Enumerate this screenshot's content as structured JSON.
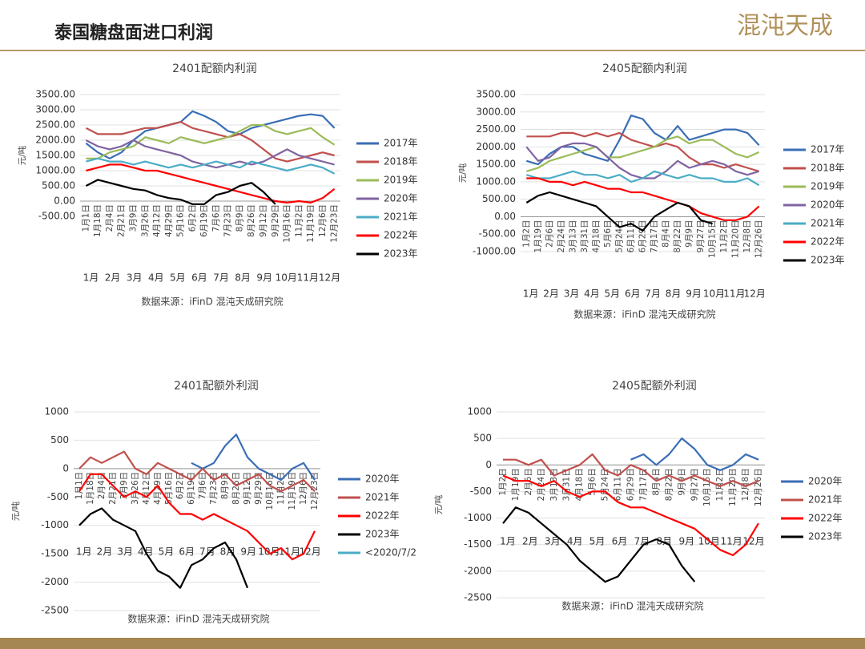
{
  "header": {
    "title": "泰国糖盘面进口利润",
    "logo": "混沌天成"
  },
  "chart_data": [
    {
      "type": "line",
      "title": "2401配额内利润",
      "axis_label": "元/吨",
      "source": "数据来源：iFinD 混沌天成研究院",
      "categories": [
        "1月1日",
        "1月18日",
        "2月4日",
        "2月21日",
        "3月9日",
        "3月26日",
        "4月12日",
        "4月29日",
        "5月16日",
        "6月2日",
        "6月19日",
        "7月6日",
        "7月23日",
        "8月9日",
        "8月26日",
        "9月12日",
        "9月29日",
        "10月16日",
        "11月2日",
        "11月19日",
        "12月6日",
        "12月23日"
      ],
      "month_labels": [
        "1月",
        "2月",
        "3月",
        "4月",
        "5月",
        "6月",
        "7月",
        "8月",
        "9月",
        "10月",
        "11月",
        "12月"
      ],
      "ylim": [
        -500,
        3500
      ],
      "yticks": [
        {
          "value": -500,
          "label": "-500.00"
        },
        {
          "value": 0,
          "label": "0.00"
        },
        {
          "value": 500,
          "label": "500.00"
        },
        {
          "value": 1000,
          "label": "1000.00"
        },
        {
          "value": 1500,
          "label": "1500.00"
        },
        {
          "value": 2000,
          "label": "2000.00"
        },
        {
          "value": 2500,
          "label": "2500.00"
        },
        {
          "value": 3000,
          "label": "3000.00"
        },
        {
          "value": 3500,
          "label": "3500.00"
        }
      ],
      "series": [
        {
          "name": "2017年",
          "color": "#3a6eb5",
          "values": [
            1900,
            1600,
            1400,
            1600,
            2000,
            2300,
            2400,
            2500,
            2600,
            2950,
            2800,
            2600,
            2300,
            2200,
            2400,
            2500,
            2600,
            2700,
            2800,
            2850,
            2800,
            2400
          ]
        },
        {
          "name": "2018年",
          "color": "#c0504d",
          "values": [
            2400,
            2200,
            2200,
            2200,
            2300,
            2400,
            2400,
            2500,
            2600,
            2400,
            2300,
            2200,
            2100,
            2200,
            2000,
            1700,
            1400,
            1300,
            1400,
            1500,
            1600,
            1500
          ]
        },
        {
          "name": "2019年",
          "color": "#9bbb59",
          "values": [
            1400,
            1400,
            1600,
            1700,
            1800,
            2100,
            2000,
            1900,
            2100,
            2000,
            1900,
            2000,
            2100,
            2300,
            2500,
            2500,
            2300,
            2200,
            2300,
            2400,
            2100,
            1850
          ]
        },
        {
          "name": "2020年",
          "color": "#8064a2",
          "values": [
            2000,
            1800,
            1700,
            1800,
            2000,
            1800,
            1700,
            1600,
            1500,
            1300,
            1200,
            1100,
            1200,
            1300,
            1200,
            1300,
            1500,
            1700,
            1500,
            1400,
            1300,
            1200
          ]
        },
        {
          "name": "2021年",
          "color": "#4bacc6",
          "values": [
            1300,
            1400,
            1300,
            1300,
            1200,
            1300,
            1200,
            1100,
            1200,
            1100,
            1200,
            1300,
            1200,
            1100,
            1300,
            1200,
            1100,
            1000,
            1100,
            1200,
            1100,
            900
          ]
        },
        {
          "name": "2022年",
          "color": "#ff0000",
          "values": [
            1000,
            1100,
            1200,
            1200,
            1100,
            1000,
            1000,
            900,
            800,
            700,
            600,
            500,
            400,
            300,
            200,
            100,
            0,
            -50,
            0,
            -50,
            100,
            400
          ]
        },
        {
          "name": "2023年",
          "color": "#000000",
          "values": [
            500,
            700,
            600,
            500,
            400,
            350,
            200,
            100,
            50,
            -100,
            -100,
            200,
            300,
            500,
            600,
            300,
            -100,
            null,
            null,
            null,
            null,
            null
          ]
        }
      ]
    },
    {
      "type": "line",
      "title": "2405配额内利润",
      "axis_label": "元/吨",
      "source": "数据来源：iFinD 混沌天成研究院",
      "categories": [
        "1月2日",
        "1月19日",
        "2月6日",
        "2月24日",
        "3月13日",
        "3月31日",
        "4月18日",
        "5月6日",
        "5月24日",
        "6月11日",
        "6月29日",
        "7月17日",
        "8月4日",
        "8月22日",
        "9月9日",
        "9月27日",
        "10月15日",
        "11月2日",
        "11月20日",
        "12月8日",
        "12月26日"
      ],
      "month_labels": [
        "1月",
        "2月",
        "3月",
        "4月",
        "5月",
        "6月",
        "7月",
        "8月",
        "9月",
        "10月",
        "11月",
        "12月"
      ],
      "ylim": [
        -1000,
        3500
      ],
      "yticks": [
        {
          "value": -1000,
          "label": "-1000.00"
        },
        {
          "value": -500,
          "label": "-500.00"
        },
        {
          "value": 0,
          "label": "0.00"
        },
        {
          "value": 500,
          "label": "500.00"
        },
        {
          "value": 1000,
          "label": "1000.00"
        },
        {
          "value": 1500,
          "label": "1500.00"
        },
        {
          "value": 2000,
          "label": "2000.00"
        },
        {
          "value": 2500,
          "label": "2500.00"
        },
        {
          "value": 3000,
          "label": "3000.00"
        },
        {
          "value": 3500,
          "label": "3500.00"
        }
      ],
      "series": [
        {
          "name": "2017年",
          "color": "#3a6eb5",
          "values": [
            1600,
            1500,
            1800,
            2000,
            2000,
            1800,
            1700,
            1600,
            2200,
            2900,
            2800,
            2400,
            2200,
            2600,
            2200,
            2300,
            2400,
            2500,
            2500,
            2400,
            2050
          ]
        },
        {
          "name": "2018年",
          "color": "#c0504d",
          "values": [
            2300,
            2300,
            2300,
            2400,
            2400,
            2300,
            2400,
            2300,
            2400,
            2200,
            2100,
            2000,
            2100,
            2000,
            1700,
            1500,
            1500,
            1400,
            1500,
            1400,
            1300
          ]
        },
        {
          "name": "2019年",
          "color": "#9bbb59",
          "values": [
            1300,
            1400,
            1600,
            1700,
            1800,
            1900,
            2000,
            1700,
            1700,
            1800,
            1900,
            2000,
            2200,
            2300,
            2100,
            2200,
            2200,
            2000,
            1800,
            1700,
            1850
          ]
        },
        {
          "name": "2020年",
          "color": "#8064a2",
          "values": [
            2000,
            1600,
            1700,
            2000,
            2100,
            2100,
            2000,
            1700,
            1400,
            1200,
            1100,
            1100,
            1300,
            1600,
            1400,
            1500,
            1600,
            1500,
            1300,
            1200,
            1300
          ]
        },
        {
          "name": "2021年",
          "color": "#4bacc6",
          "values": [
            1200,
            1100,
            1100,
            1200,
            1300,
            1200,
            1200,
            1100,
            1200,
            1000,
            1100,
            1300,
            1200,
            1100,
            1200,
            1100,
            1100,
            1000,
            1000,
            1100,
            900
          ]
        },
        {
          "name": "2022年",
          "color": "#ff0000",
          "values": [
            1100,
            1100,
            1000,
            1000,
            900,
            1000,
            900,
            800,
            800,
            700,
            700,
            600,
            500,
            400,
            300,
            100,
            0,
            -100,
            -100,
            0,
            300
          ]
        },
        {
          "name": "2023年",
          "color": "#000000",
          "values": [
            400,
            600,
            700,
            600,
            500,
            400,
            300,
            0,
            -300,
            -200,
            -400,
            0,
            200,
            400,
            300,
            -100,
            -200,
            null,
            null,
            null,
            null
          ]
        }
      ]
    },
    {
      "type": "line",
      "title": "2401配额外利润",
      "axis_label": "元/吨",
      "source": "数据来源：iFinD 混沌天成研究院",
      "categories": [
        "1月1日",
        "1月18日",
        "2月4日",
        "2月21日",
        "3月9日",
        "3月26日",
        "4月12日",
        "4月29日",
        "5月16日",
        "6月2日",
        "6月19日",
        "7月6日",
        "7月23日",
        "8月9日",
        "8月26日",
        "9月12日",
        "9月29日",
        "10月16日",
        "11月2日",
        "11月19日",
        "12月6日",
        "12月23日"
      ],
      "month_labels": [
        "1月",
        "2月",
        "3月",
        "4月",
        "5月",
        "6月",
        "7月",
        "8月",
        "9月",
        "10月",
        "11月",
        "12月"
      ],
      "ylim": [
        -2500,
        1000
      ],
      "yticks": [
        -2500,
        -2000,
        -1500,
        -1000,
        -500,
        0,
        500,
        1000
      ],
      "series": [
        {
          "name": "2020年",
          "color": "#3a6eb5",
          "values": [
            null,
            null,
            null,
            null,
            null,
            null,
            null,
            null,
            null,
            null,
            100,
            0,
            100,
            400,
            600,
            200,
            0,
            -100,
            -200,
            0,
            100,
            -200
          ]
        },
        {
          "name": "2021年",
          "color": "#c0504d",
          "values": [
            0,
            200,
            100,
            200,
            300,
            0,
            -100,
            100,
            0,
            -100,
            -200,
            0,
            -200,
            -100,
            -300,
            -200,
            -100,
            -300,
            -400,
            -300,
            -200,
            -400
          ]
        },
        {
          "name": "2022年",
          "color": "#ff0000",
          "values": [
            -400,
            -100,
            -100,
            -300,
            -500,
            -400,
            -500,
            -300,
            -600,
            -800,
            -800,
            -900,
            -800,
            -900,
            -1000,
            -1100,
            -1300,
            -1500,
            -1400,
            -1600,
            -1500,
            -1100
          ]
        },
        {
          "name": "2023年",
          "color": "#000000",
          "values": [
            -1000,
            -800,
            -700,
            -900,
            -1000,
            -1100,
            -1500,
            -1800,
            -1900,
            -2100,
            -1700,
            -1600,
            -1400,
            -1300,
            -1600,
            -2100,
            null,
            null,
            null,
            null,
            null,
            null
          ]
        },
        {
          "name": "<2020/7/2",
          "color": "#4bacc6",
          "values": [
            null,
            null,
            null,
            null,
            null,
            null,
            null,
            null,
            null,
            null,
            null,
            null,
            null,
            null,
            null,
            null,
            null,
            null,
            null,
            null,
            null,
            null
          ]
        }
      ]
    },
    {
      "type": "line",
      "title": "2405配额外利润",
      "axis_label": "元/吨",
      "source": "数据来源：iFinD 混沌天成研究院",
      "categories": [
        "1月2日",
        "1月19日",
        "2月6日",
        "2月24日",
        "3月13日",
        "3月31日",
        "4月18日",
        "5月6日",
        "5月24日",
        "6月11日",
        "6月29日",
        "7月17日",
        "8月4日",
        "8月22日",
        "9月9日",
        "9月27日",
        "10月15日",
        "11月2日",
        "11月20日",
        "12月8日",
        "12月26日"
      ],
      "month_labels": [
        "1月",
        "2月",
        "3月",
        "4月",
        "5月",
        "6月",
        "7月",
        "8月",
        "9月",
        "10月",
        "11月",
        "12月"
      ],
      "ylim": [
        -2500,
        1000
      ],
      "yticks": [
        -2500,
        -2000,
        -1500,
        -1000,
        -500,
        0,
        500,
        1000
      ],
      "series": [
        {
          "name": "2020年",
          "color": "#3a6eb5",
          "values": [
            null,
            null,
            null,
            null,
            null,
            null,
            null,
            null,
            null,
            null,
            100,
            200,
            0,
            200,
            500,
            300,
            0,
            -100,
            0,
            200,
            100
          ]
        },
        {
          "name": "2021年",
          "color": "#c0504d",
          "values": [
            100,
            100,
            0,
            100,
            -200,
            -100,
            0,
            200,
            -100,
            -200,
            0,
            -100,
            -300,
            -200,
            -300,
            -200,
            -300,
            -400,
            -300,
            -400,
            -300
          ]
        },
        {
          "name": "2022年",
          "color": "#ff0000",
          "values": [
            -200,
            -300,
            -300,
            -400,
            -300,
            -500,
            -600,
            -500,
            -500,
            -700,
            -800,
            -800,
            -900,
            -1000,
            -1100,
            -1200,
            -1400,
            -1600,
            -1700,
            -1500,
            -1100
          ]
        },
        {
          "name": "2023年",
          "color": "#000000",
          "values": [
            -1100,
            -800,
            -900,
            -1100,
            -1300,
            -1500,
            -1800,
            -2000,
            -2200,
            -2100,
            -1800,
            -1500,
            -1400,
            -1500,
            -1900,
            -2200,
            null,
            null,
            null,
            null,
            null
          ]
        }
      ]
    }
  ]
}
